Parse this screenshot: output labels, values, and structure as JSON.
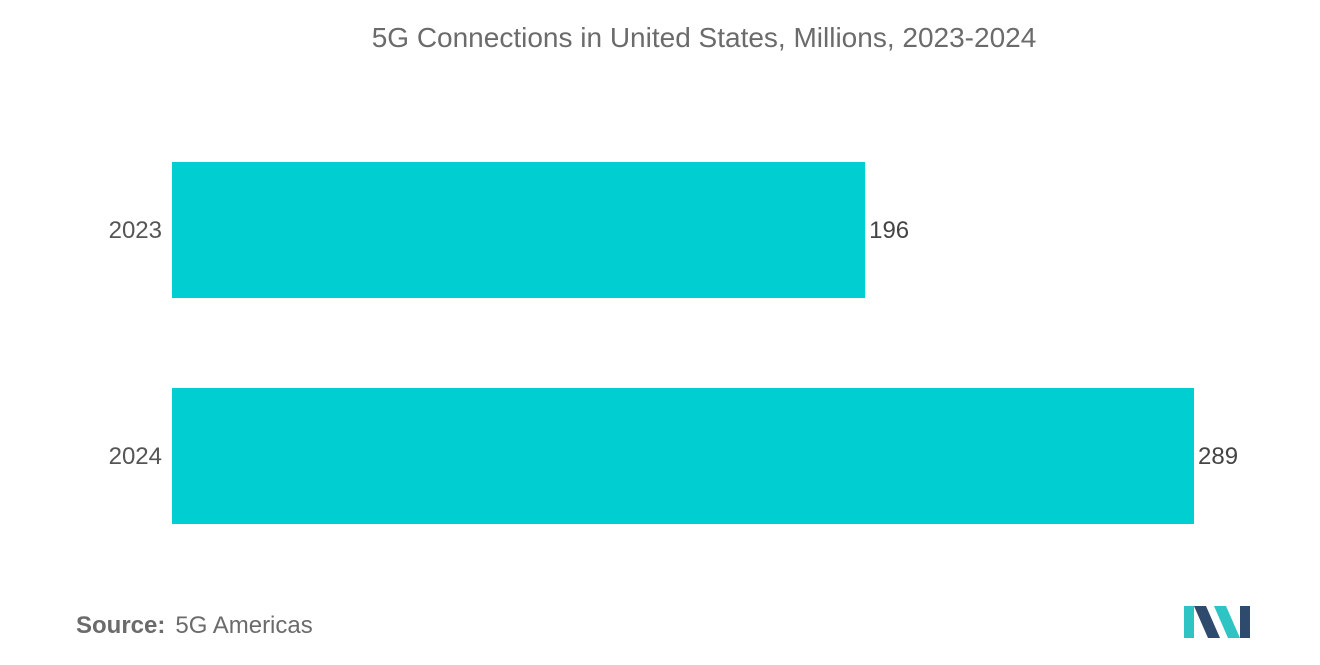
{
  "chart_data": {
    "type": "bar",
    "orientation": "horizontal",
    "title": "5G Connections in United States, Millions, 2023-2024",
    "categories": [
      "2023",
      "2024"
    ],
    "values": [
      196,
      289
    ],
    "data_labels": [
      "196",
      "289"
    ],
    "xlabel": "",
    "ylabel": "",
    "xlim": [
      0,
      289
    ],
    "grid": false,
    "legend": "none"
  },
  "colors": {
    "bar": "#00CED1",
    "logo_dark": "#2E4B6E",
    "logo_light": "#2EC4C4"
  },
  "source": {
    "label": "Source:",
    "value": "5G Americas"
  },
  "logo": {
    "icon": "mordor-intelligence-logo"
  }
}
